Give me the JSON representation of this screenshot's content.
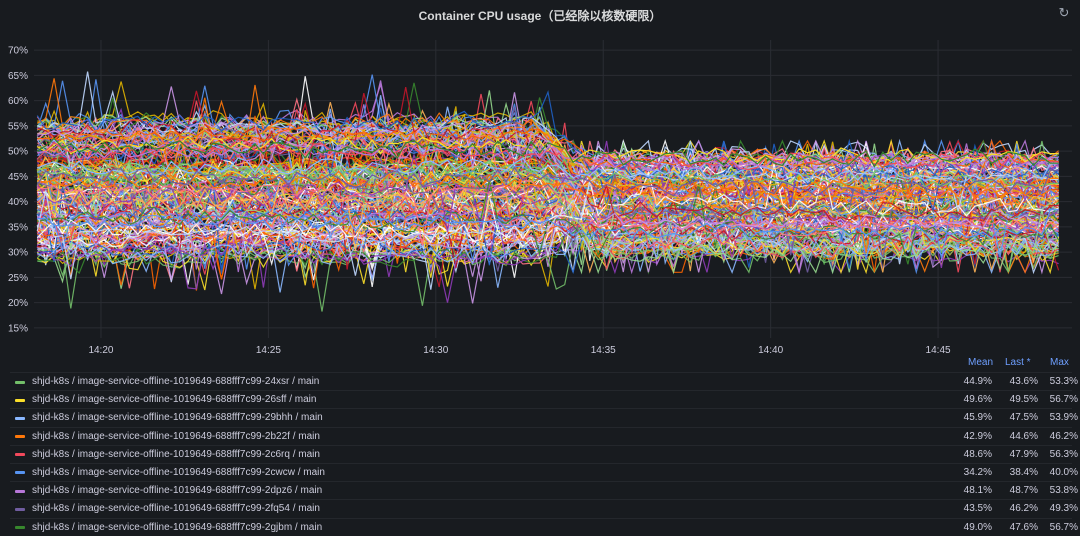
{
  "panel": {
    "title": "Container CPU usage（已经除以核数硬限）",
    "refresh_icon": "refresh-icon"
  },
  "legend_headers": {
    "mean": "Mean",
    "last": "Last *",
    "max": "Max"
  },
  "legend": [
    {
      "name": "shjd-k8s / image-service-offline-1019649-688fff7c99-24xsr / main",
      "color": "#73bf69",
      "mean": "44.9%",
      "last": "43.6%",
      "max": "53.3%"
    },
    {
      "name": "shjd-k8s / image-service-offline-1019649-688fff7c99-26sff / main",
      "color": "#fade2a",
      "mean": "49.6%",
      "last": "49.5%",
      "max": "56.7%"
    },
    {
      "name": "shjd-k8s / image-service-offline-1019649-688fff7c99-29bhh / main",
      "color": "#8ab8ff",
      "mean": "45.9%",
      "last": "47.5%",
      "max": "53.9%"
    },
    {
      "name": "shjd-k8s / image-service-offline-1019649-688fff7c99-2b22f / main",
      "color": "#ff780a",
      "mean": "42.9%",
      "last": "44.6%",
      "max": "46.2%"
    },
    {
      "name": "shjd-k8s / image-service-offline-1019649-688fff7c99-2c6rq / main",
      "color": "#f2495c",
      "mean": "48.6%",
      "last": "47.9%",
      "max": "56.3%"
    },
    {
      "name": "shjd-k8s / image-service-offline-1019649-688fff7c99-2cwcw / main",
      "color": "#5794f2",
      "mean": "34.2%",
      "last": "38.4%",
      "max": "40.0%"
    },
    {
      "name": "shjd-k8s / image-service-offline-1019649-688fff7c99-2dpz6 / main",
      "color": "#b877d9",
      "mean": "48.1%",
      "last": "48.7%",
      "max": "53.8%"
    },
    {
      "name": "shjd-k8s / image-service-offline-1019649-688fff7c99-2fq54 / main",
      "color": "#705da0",
      "mean": "43.5%",
      "last": "46.2%",
      "max": "49.3%"
    },
    {
      "name": "shjd-k8s / image-service-offline-1019649-688fff7c99-2gjbm / main",
      "color": "#37872d",
      "mean": "49.0%",
      "last": "47.6%",
      "max": "56.7%"
    }
  ],
  "chart_data": {
    "type": "line",
    "y_ticks": [
      "15%",
      "20%",
      "25%",
      "30%",
      "35%",
      "40%",
      "45%",
      "50%",
      "55%",
      "60%",
      "65%",
      "70%"
    ],
    "ylim": [
      13,
      72
    ],
    "x_ticks": [
      "14:20",
      "14:25",
      "14:30",
      "14:35",
      "14:40",
      "14:45"
    ],
    "xlim": [
      "14:18",
      "14:49"
    ],
    "grid": true,
    "legend_placement": "bottom",
    "series_count_approx": 200,
    "step_change_time": "14:34",
    "series_band_before": [
      25,
      60
    ],
    "series_band_after": [
      28,
      51
    ],
    "series": [
      {
        "name": "shjd-k8s / image-service-offline-1019649-688fff7c99-24xsr / main",
        "mean": 44.9,
        "last": 43.6,
        "max": 53.3
      },
      {
        "name": "shjd-k8s / image-service-offline-1019649-688fff7c99-26sff / main",
        "mean": 49.6,
        "last": 49.5,
        "max": 56.7
      },
      {
        "name": "shjd-k8s / image-service-offline-1019649-688fff7c99-29bhh / main",
        "mean": 45.9,
        "last": 47.5,
        "max": 53.9
      },
      {
        "name": "shjd-k8s / image-service-offline-1019649-688fff7c99-2b22f / main",
        "mean": 42.9,
        "last": 44.6,
        "max": 46.2
      },
      {
        "name": "shjd-k8s / image-service-offline-1019649-688fff7c99-2c6rq / main",
        "mean": 48.6,
        "last": 47.9,
        "max": 56.3
      },
      {
        "name": "shjd-k8s / image-service-offline-1019649-688fff7c99-2cwcw / main",
        "mean": 34.2,
        "last": 38.4,
        "max": 40.0
      },
      {
        "name": "shjd-k8s / image-service-offline-1019649-688fff7c99-2dpz6 / main",
        "mean": 48.1,
        "last": 48.7,
        "max": 53.8
      },
      {
        "name": "shjd-k8s / image-service-offline-1019649-688fff7c99-2fq54 / main",
        "mean": 43.5,
        "last": 46.2,
        "max": 49.3
      },
      {
        "name": "shjd-k8s / image-service-offline-1019649-688fff7c99-2gjbm / main",
        "mean": 49.0,
        "last": 47.6,
        "max": 56.7
      }
    ],
    "palette": [
      "#73bf69",
      "#fade2a",
      "#8ab8ff",
      "#ff780a",
      "#f2495c",
      "#5794f2",
      "#b877d9",
      "#705da0",
      "#37872d",
      "#ffffff",
      "#e0b400",
      "#c4162a",
      "#1f60c4",
      "#8f3bb8",
      "#96d98d",
      "#ffb357",
      "#ff7383",
      "#ca95e5",
      "#c0d8ff",
      "#fa6400"
    ]
  }
}
